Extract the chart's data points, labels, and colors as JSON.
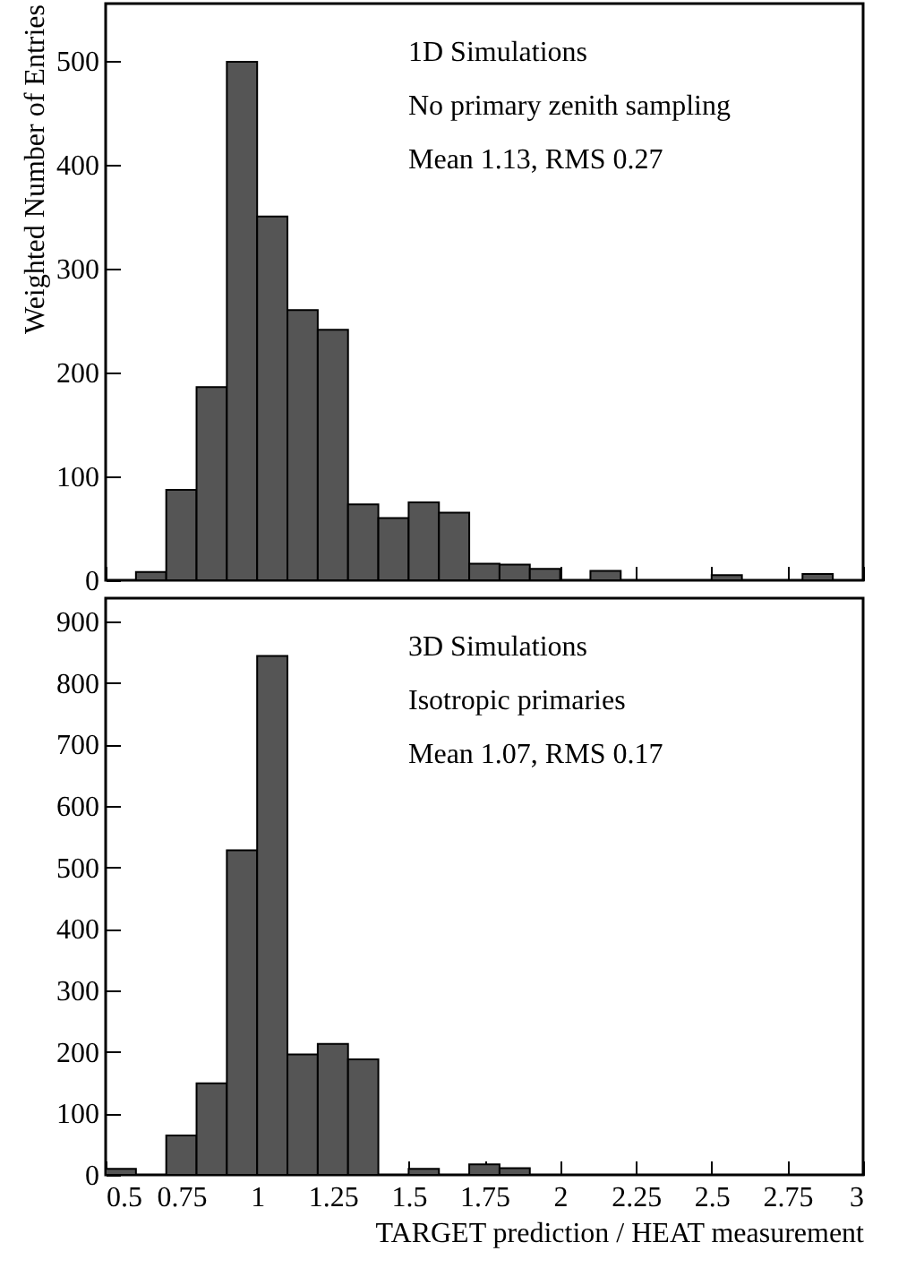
{
  "chart_data": [
    {
      "type": "histogram",
      "ylabel": "Weighted Number of Entries",
      "annotations": [
        "1D Simulations",
        "No primary zenith sampling",
        "Mean 1.13, RMS 0.27"
      ],
      "bins": [
        0.5,
        0.6,
        0.7,
        0.8,
        0.9,
        1.0,
        1.1,
        1.2,
        1.3,
        1.4,
        1.5,
        1.6,
        1.7,
        1.8,
        1.9,
        2.0,
        2.1,
        2.2,
        2.3,
        2.4,
        2.5,
        2.6,
        2.7,
        2.8,
        2.9,
        3.0
      ],
      "values": [
        0,
        8,
        87,
        186,
        499,
        350,
        260,
        241,
        73,
        60,
        75,
        65,
        16,
        15,
        11,
        0,
        9,
        0,
        0,
        0,
        5,
        0,
        0,
        6,
        0
      ],
      "color": "#555555",
      "xlim": [
        0.5,
        3
      ],
      "xticks": [
        0.5,
        0.75,
        1,
        1.25,
        1.5,
        1.75,
        2,
        2.25,
        2.5,
        2.75,
        3
      ],
      "ylim": [
        0,
        555
      ],
      "yticks": [
        0,
        100,
        200,
        300,
        400,
        500
      ],
      "tick_labels": "y",
      "grid": false
    },
    {
      "type": "histogram",
      "xlabel": "TARGET prediction / HEAT measurement",
      "annotations": [
        "3D Simulations",
        "Isotropic primaries",
        "Mean 1.07, RMS 0.17"
      ],
      "bins": [
        0.5,
        0.6,
        0.7,
        0.8,
        0.9,
        1.0,
        1.1,
        1.2,
        1.3,
        1.4,
        1.5,
        1.6,
        1.7,
        1.8,
        1.9,
        2.0,
        2.1,
        2.2,
        2.3,
        2.4,
        2.5,
        2.6,
        2.7,
        2.8,
        2.9,
        3.0
      ],
      "values": [
        10,
        0,
        64,
        149,
        528,
        844,
        196,
        213,
        188,
        0,
        10,
        0,
        17,
        11,
        0,
        0,
        0,
        0,
        0,
        0,
        0,
        0,
        0,
        0,
        0
      ],
      "color": "#555555",
      "xlim": [
        0.5,
        3
      ],
      "xticks": [
        0.5,
        0.75,
        1,
        1.25,
        1.5,
        1.75,
        2,
        2.25,
        2.5,
        2.75,
        3
      ],
      "ylim": [
        0,
        938
      ],
      "yticks": [
        0,
        100,
        200,
        300,
        400,
        500,
        600,
        700,
        800,
        900
      ],
      "grid": false
    }
  ]
}
